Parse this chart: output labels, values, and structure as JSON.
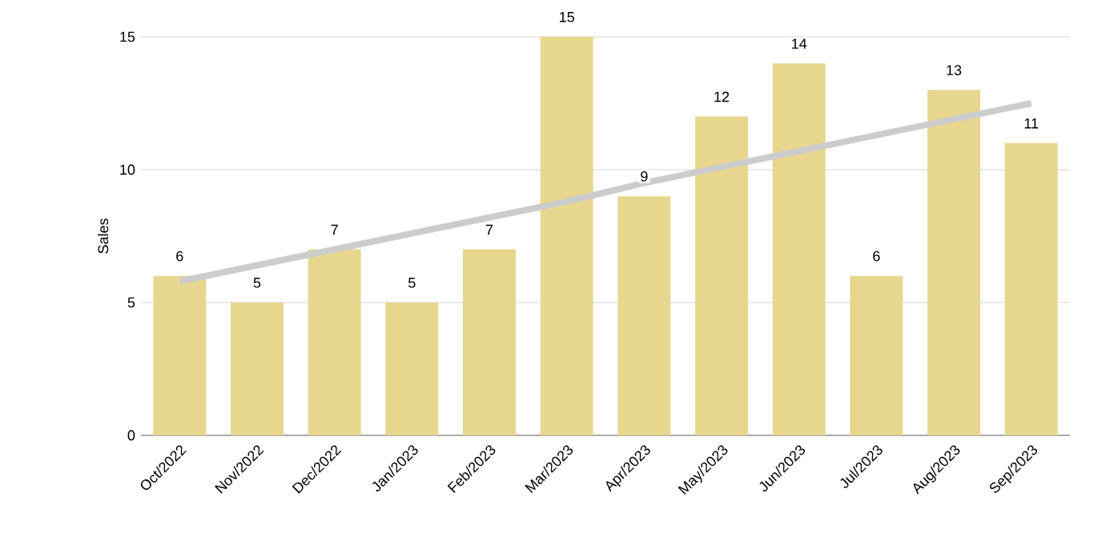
{
  "chart_data": {
    "type": "bar",
    "ylabel": "Sales",
    "categories": [
      "Oct/2022",
      "Nov/2022",
      "Dec/2022",
      "Jan/2023",
      "Feb/2023",
      "Mar/2023",
      "Apr/2023",
      "May/2023",
      "Jun/2023",
      "Jul/2023",
      "Aug/2023",
      "Sep/2023"
    ],
    "series": [
      {
        "color": "#e7d78e",
        "values": [
          6,
          5,
          7,
          5,
          7,
          15,
          9,
          12,
          14,
          6,
          13,
          11
        ],
        "value_labels": [
          "6",
          "5",
          "7",
          "5",
          "7",
          "15",
          "9",
          "12",
          "14",
          "6",
          "13",
          "11"
        ]
      },
      {
        "type": "line",
        "color": "#cccccc",
        "values": [
          5.8,
          6.4,
          7.0,
          7.6,
          8.2,
          8.8,
          9.5,
          10.1,
          10.7,
          11.3,
          11.9,
          12.5
        ]
      }
    ],
    "ylim": [
      0,
      15
    ],
    "yticks": [
      0,
      5,
      10,
      15
    ],
    "grid": "y"
  }
}
